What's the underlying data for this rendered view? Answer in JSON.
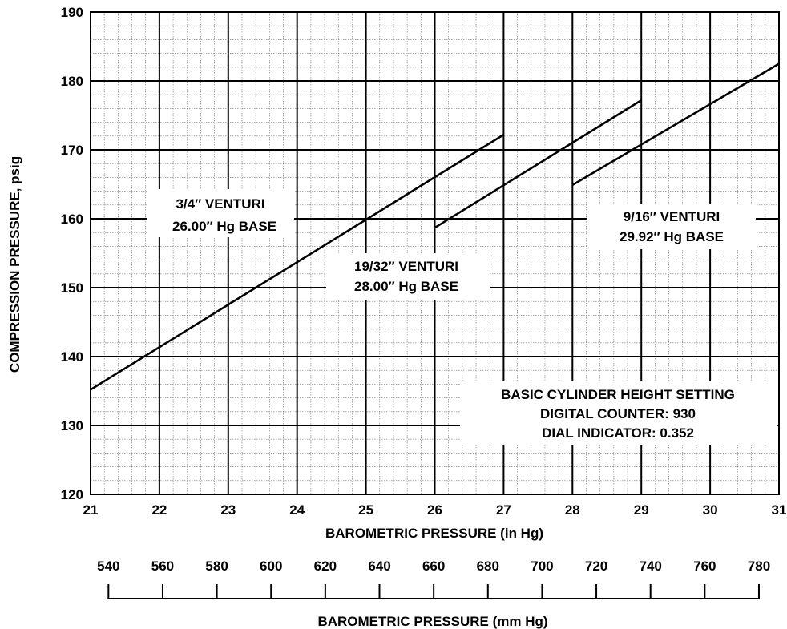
{
  "chart_data": {
    "type": "line",
    "xlabel": "BAROMETRIC PRESSURE (in Hg)",
    "ylabel": "COMPRESSION PRESSURE, psig",
    "xlim": [
      21,
      31
    ],
    "ylim": [
      120,
      190
    ],
    "x_ticks": [
      "21",
      "22",
      "23",
      "24",
      "25",
      "26",
      "27",
      "28",
      "29",
      "30",
      "31"
    ],
    "y_ticks": [
      "120",
      "130",
      "140",
      "150",
      "160",
      "170",
      "180",
      "190"
    ],
    "grid": true,
    "series": [
      {
        "x": [
          21,
          27
        ],
        "y": [
          135.2,
          172.2
        ]
      },
      {
        "x": [
          26,
          29
        ],
        "y": [
          158.7,
          177.2
        ]
      },
      {
        "x": [
          28,
          31
        ],
        "y": [
          164.9,
          182.5
        ]
      }
    ],
    "annotations": [
      {
        "lines": [
          "3/4″ VENTURI",
          "26.00″ Hg BASE"
        ]
      },
      {
        "lines": [
          "19/32″ VENTURI",
          "28.00″ Hg BASE"
        ]
      },
      {
        "lines": [
          "9/16″ VENTURI",
          "29.92″ Hg BASE"
        ]
      },
      {
        "lines": [
          "BASIC CYLINDER HEIGHT SETTING",
          "DIGITAL COUNTER: 930",
          "DIAL INDICATOR: 0.352"
        ]
      }
    ],
    "secondary_axis": {
      "label": "BAROMETRIC PRESSURE (mm Hg)",
      "ticks": [
        540,
        560,
        580,
        600,
        620,
        640,
        660,
        680,
        700,
        720,
        740,
        760,
        780
      ]
    }
  }
}
